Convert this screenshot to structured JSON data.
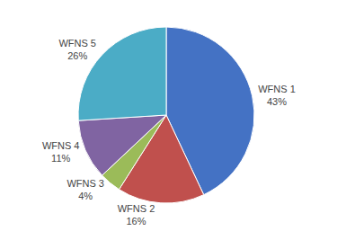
{
  "chart_data": {
    "type": "pie",
    "categories": [
      "WFNS 1",
      "WFNS 2",
      "WFNS 3",
      "WFNS 4",
      "WFNS 5"
    ],
    "values": [
      43,
      16,
      4,
      11,
      26
    ],
    "value_labels": [
      "43%",
      "16%",
      "4%",
      "11%",
      "26%"
    ],
    "colors": [
      "#4472C4",
      "#C0504D",
      "#9BBB59",
      "#8064A2",
      "#4BACC6"
    ],
    "data_labels": true
  }
}
